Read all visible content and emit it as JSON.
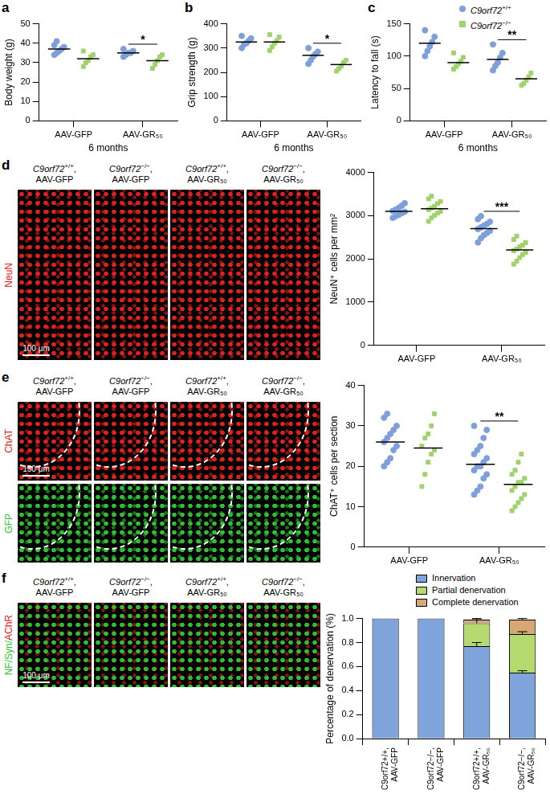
{
  "chart_data": [
    {
      "type": "dot",
      "panel": "a",
      "y_label": "Body weight (g)",
      "x_label": "6 months",
      "categories": [
        "AAV-GFP",
        "AAV-GR₅₀"
      ],
      "ylim": [
        0,
        50
      ],
      "yticks": [
        0,
        10,
        20,
        30,
        40,
        50
      ],
      "series": [
        {
          "name": "C9orf72+/+",
          "color": "#7d9fdc",
          "marker": "circle",
          "values": [
            [
              34,
              35,
              36,
              37,
              38,
              39,
              41
            ],
            [
              33,
              34,
              35,
              35,
              36,
              37
            ]
          ],
          "means": [
            37,
            35
          ]
        },
        {
          "name": "C9orf72−/−",
          "color": "#9fd36b",
          "marker": "square",
          "values": [
            [
              28,
              30,
              31,
              33,
              34,
              36
            ],
            [
              27,
              29,
              31,
              33,
              34
            ]
          ],
          "means": [
            32,
            31
          ]
        }
      ],
      "annotations": [
        {
          "category": "AAV-GR₅₀",
          "label": "*"
        }
      ]
    },
    {
      "type": "dot",
      "panel": "b",
      "y_label": "Grip strength (g)",
      "x_label": "6 months",
      "categories": [
        "AAV-GFP",
        "AAV-GR₅₀"
      ],
      "ylim": [
        0,
        400
      ],
      "yticks": [
        0,
        100,
        200,
        300,
        400
      ],
      "series": [
        {
          "name": "C9orf72+/+",
          "color": "#7d9fdc",
          "marker": "circle",
          "values": [
            [
              300,
              315,
              320,
              330,
              340,
              350
            ],
            [
              235,
              250,
              265,
              275,
              285,
              300
            ]
          ],
          "means": [
            325,
            270
          ]
        },
        {
          "name": "C9orf72−/−",
          "color": "#9fd36b",
          "marker": "square",
          "values": [
            [
              290,
              305,
              320,
              330,
              345,
              355
            ],
            [
              205,
              215,
              225,
              240,
              250
            ]
          ],
          "means": [
            325,
            232
          ]
        }
      ],
      "annotations": [
        {
          "category": "AAV-GR₅₀",
          "label": "*"
        }
      ]
    },
    {
      "type": "dot",
      "panel": "c",
      "y_label": "Latency to fall (s)",
      "x_label": "6 months",
      "categories": [
        "AAV-GFP",
        "AAV-GR₅₀"
      ],
      "ylim": [
        0,
        150
      ],
      "yticks": [
        0,
        50,
        100,
        150
      ],
      "series": [
        {
          "name": "C9orf72+/+",
          "color": "#7d9fdc",
          "marker": "circle",
          "values": [
            [
              100,
              108,
              115,
              122,
              130,
              140
            ],
            [
              78,
              85,
              90,
              98,
              105,
              118
            ]
          ],
          "means": [
            120,
            95
          ]
        },
        {
          "name": "C9orf72−/−",
          "color": "#9fd36b",
          "marker": "square",
          "values": [
            [
              80,
              84,
              88,
              92,
              98,
              105
            ],
            [
              55,
              58,
              63,
              68,
              74
            ]
          ],
          "means": [
            90,
            65
          ]
        }
      ],
      "annotations": [
        {
          "category": "AAV-GR₅₀",
          "label": "**"
        }
      ]
    },
    {
      "type": "dot",
      "y_label": "NeuN⁺ cells per mm²",
      "categories": [
        "AAV-GFP",
        "AAV-GR₅₀"
      ],
      "ylim": [
        0,
        4000
      ],
      "yticks": [
        0,
        1000,
        2000,
        3000,
        4000
      ],
      "series": [
        {
          "name": "C9orf72+/+",
          "color": "#7d9fdc",
          "marker": "circle",
          "values": [
            [
              2950,
              2990,
              3020,
              3060,
              3090,
              3110,
              3140,
              3180,
              3230,
              3290
            ],
            [
              2380,
              2480,
              2550,
              2600,
              2650,
              2690,
              2730,
              2770,
              2810,
              2860,
              2920,
              2990
            ]
          ],
          "means": [
            3100,
            2700
          ]
        },
        {
          "name": "C9orf72−/−",
          "color": "#9fd36b",
          "marker": "square",
          "values": [
            [
              2870,
              2950,
              3010,
              3060,
              3100,
              3140,
              3180,
              3220,
              3280,
              3330,
              3390,
              3450
            ],
            [
              1880,
              1950,
              2030,
              2100,
              2150,
              2190,
              2230,
              2280,
              2320,
              2380,
              2450,
              2530
            ]
          ],
          "means": [
            3160,
            2210
          ]
        }
      ],
      "annotations": [
        {
          "category": "AAV-GR₅₀",
          "label": "***"
        }
      ]
    },
    {
      "type": "dot",
      "y_label": "ChAT⁺ cells per section",
      "categories": [
        "AAV-GFP",
        "AAV-GR₅₀"
      ],
      "ylim": [
        0,
        40
      ],
      "yticks": [
        0,
        10,
        20,
        30,
        40
      ],
      "series": [
        {
          "name": "C9orf72+/+",
          "color": "#7d9fdc",
          "marker": "circle",
          "values": [
            [
              20,
              21,
              22,
              24,
              25,
              26,
              27,
              28,
              29,
              30,
              32,
              33
            ],
            [
              13,
              14,
              15,
              17,
              18,
              19,
              20,
              20,
              21,
              22,
              23,
              24,
              25,
              27,
              29,
              30
            ]
          ],
          "means": [
            26,
            20.5
          ]
        },
        {
          "name": "C9orf72−/−",
          "color": "#9fd36b",
          "marker": "square",
          "values": [
            [
              15,
              18,
              21,
              23,
              24,
              25,
              27,
              28,
              30,
              33
            ],
            [
              9,
              10,
              11,
              12,
              13,
              14,
              15,
              16,
              16,
              17,
              18,
              19,
              21,
              23
            ]
          ],
          "means": [
            24.5,
            15.5
          ]
        }
      ],
      "annotations": [
        {
          "category": "AAV-GR₅₀",
          "label": "**"
        }
      ]
    },
    {
      "type": "bar",
      "stacked": true,
      "legend": "top-right",
      "y_label": "Percentage of denervation (%)",
      "categories": [
        "C9orf72+/+, AAV-GFP",
        "C9orf72−/−, AAV-GFP",
        "C9orf72+/+, AAV-GR₅₀",
        "C9orf72−/−, AAV-GR₅₀"
      ],
      "ylim": [
        0,
        1
      ],
      "yticks": [
        {
          "value": 0,
          "label": "0.0"
        },
        0.2,
        0.4,
        0.6,
        0.8,
        {
          "value": 1,
          "label": "1.0"
        }
      ],
      "series": [
        {
          "name": "Innervation",
          "color": "#7fa4dc",
          "values": [
            1,
            1,
            0.77,
            0.55
          ],
          "errors": [
            0,
            0,
            0.03,
            0.015
          ]
        },
        {
          "name": "Partial denervation",
          "color": "#b4da6f",
          "values": [
            0,
            0,
            0.19,
            0.32
          ],
          "errors": [
            0,
            0,
            0.03,
            0.02
          ]
        },
        {
          "name": "Complete denervation",
          "color": "#d5a874",
          "values": [
            0,
            0,
            0.03,
            0.12
          ],
          "errors": [
            0,
            0,
            0.01,
            0.01
          ]
        }
      ]
    }
  ],
  "legend_items": [
    {
      "name": "C9orf72+/+",
      "color": "#7d9fdc",
      "marker": "circle"
    },
    {
      "name": "C9orf72−/−",
      "color": "#9fd36b",
      "marker": "square"
    }
  ],
  "images": [
    {
      "panel": "d",
      "columns": [
        "C9orf72+/+, AAV-GFP",
        "C9orf72−/−, AAV-GFP",
        "C9orf72+/+, AAV-GR₅₀",
        "C9orf72−/−, AAV-GR₅₀"
      ],
      "rows": [
        {
          "label_parts": [
            {
              "text": "NeuN",
              "color": "#e0201c"
            }
          ]
        }
      ],
      "scale_bar": "100 μm"
    },
    {
      "panel": "e",
      "columns": [
        "C9orf72+/+, AAV-GFP",
        "C9orf72−/−, AAV-GFP",
        "C9orf72+/+, AAV-GR₅₀",
        "C9orf72−/−, AAV-GR₅₀"
      ],
      "rows": [
        {
          "label_parts": [
            {
              "text": "ChAT",
              "color": "#e0201c"
            }
          ]
        },
        {
          "label_parts": [
            {
              "text": "GFP",
              "color": "#2fc02f"
            }
          ]
        }
      ],
      "scale_bar": "150 μm"
    },
    {
      "panel": "f",
      "columns": [
        "C9orf72+/+, AAV-GFP",
        "C9orf72−/−, AAV-GFP",
        "C9orf72+/+, AAV-GR₅₀",
        "C9orf72−/−, AAV-GR₅₀"
      ],
      "rows": [
        {
          "label_parts": [
            {
              "text": "NF/Syn/",
              "color": "#2fc02f"
            },
            {
              "text": "AChR",
              "color": "#e0201c"
            }
          ]
        }
      ],
      "scale_bar": "100 μm"
    }
  ]
}
